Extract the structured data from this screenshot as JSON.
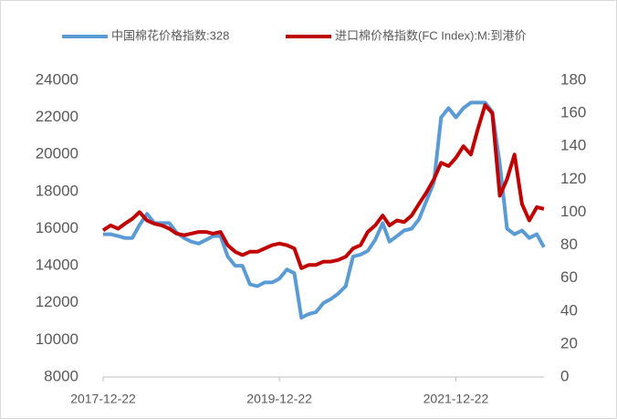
{
  "chart_data": {
    "type": "line",
    "x": [
      "2017-12-22",
      "2018-01-22",
      "2018-02-22",
      "2018-03-22",
      "2018-04-22",
      "2018-05-22",
      "2018-06-22",
      "2018-07-22",
      "2018-08-22",
      "2018-09-22",
      "2018-10-22",
      "2018-11-22",
      "2018-12-22",
      "2019-01-22",
      "2019-02-22",
      "2019-03-22",
      "2019-04-22",
      "2019-05-22",
      "2019-06-22",
      "2019-07-22",
      "2019-08-22",
      "2019-09-22",
      "2019-10-22",
      "2019-11-22",
      "2019-12-22",
      "2020-01-22",
      "2020-02-22",
      "2020-03-22",
      "2020-04-22",
      "2020-05-22",
      "2020-06-22",
      "2020-07-22",
      "2020-08-22",
      "2020-09-22",
      "2020-10-22",
      "2020-11-22",
      "2020-12-22",
      "2021-01-22",
      "2021-02-22",
      "2021-03-22",
      "2021-04-22",
      "2021-05-22",
      "2021-06-22",
      "2021-07-22",
      "2021-08-22",
      "2021-09-22",
      "2021-10-22",
      "2021-11-22",
      "2021-12-22",
      "2022-01-22",
      "2022-02-22",
      "2022-03-22",
      "2022-04-22",
      "2022-05-22",
      "2022-06-22",
      "2022-07-22",
      "2022-08-22",
      "2022-09-22",
      "2022-10-22",
      "2022-11-22",
      "2022-12-22"
    ],
    "series": [
      {
        "name": "中国棉花价格指数:328",
        "color": "#5b9bd5",
        "values": [
          15700,
          15700,
          15600,
          15500,
          15500,
          16200,
          16800,
          16300,
          16300,
          16300,
          15800,
          15500,
          15300,
          15200,
          15400,
          15600,
          15600,
          14500,
          14000,
          14000,
          13000,
          12900,
          13100,
          13100,
          13300,
          13800,
          13600,
          11200,
          11400,
          11500,
          12000,
          12200,
          12500,
          12900,
          14500,
          14600,
          14800,
          15400,
          16300,
          15300,
          15600,
          15900,
          16000,
          16500,
          17500,
          18500,
          22000,
          22500,
          22000,
          22500,
          22800,
          22800,
          22800,
          22300,
          19500,
          16000,
          15700,
          15900,
          15500,
          15700,
          15000
        ]
      },
      {
        "name": "进口棉价格指数(FC Index):M:到港价",
        "color": "#c00000",
        "axis": "y2",
        "values": [
          89,
          92,
          90,
          93,
          96,
          100,
          95,
          93,
          92,
          90,
          87,
          86,
          87,
          88,
          88,
          87,
          88,
          80,
          76,
          74,
          76,
          76,
          78,
          80,
          81,
          80,
          78,
          66,
          68,
          68,
          70,
          70,
          71,
          73,
          78,
          80,
          88,
          92,
          98,
          92,
          95,
          94,
          98,
          105,
          112,
          120,
          130,
          128,
          133,
          140,
          135,
          150,
          165,
          160,
          110,
          120,
          135,
          105,
          95,
          103,
          102
        ]
      }
    ],
    "xlim": [
      "2017-12-22",
      "2022-12-22"
    ],
    "xticks": [
      "2017-12-22",
      "2019-12-22",
      "2021-12-22"
    ],
    "ylim": [
      8000,
      24000
    ],
    "yticks": [
      8000,
      10000,
      12000,
      14000,
      16000,
      18000,
      20000,
      22000,
      24000
    ],
    "y2lim": [
      0,
      180
    ],
    "y2ticks": [
      0,
      20,
      40,
      60,
      80,
      100,
      120,
      140,
      160,
      180
    ],
    "legend": "top"
  }
}
